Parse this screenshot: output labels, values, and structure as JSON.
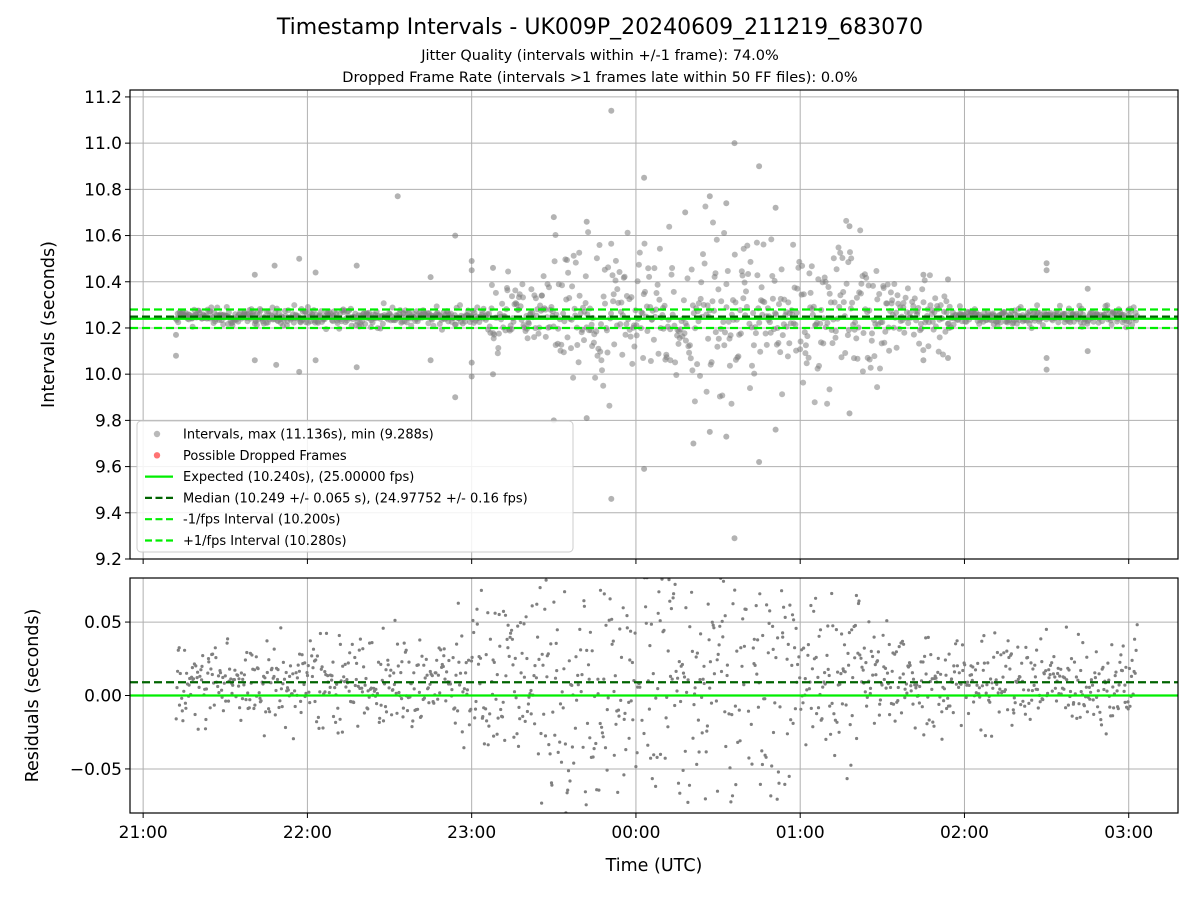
{
  "title": "Timestamp Intervals - UK009P_20240609_211219_683070",
  "subtitle_1": "Jitter Quality (intervals within +/-1 frame): 74.0%",
  "subtitle_2": "Dropped Frame Rate (intervals >1 frames late within 50 FF files): 0.0%",
  "colors": {
    "points": "#808080",
    "dropped": "#ff0000",
    "expected": "#00ee00",
    "median": "#006400",
    "fps_bounds": "#00ee00",
    "grid": "#b0b0b0"
  },
  "chart_data": [
    {
      "type": "scatter",
      "name": "intervals",
      "ylabel": "Intervals (seconds)",
      "xlim_hours": [
        20.92,
        27.3
      ],
      "ylim": [
        9.2,
        11.23
      ],
      "yticks": [
        9.2,
        9.4,
        9.6,
        9.8,
        10.0,
        10.2,
        10.4,
        10.6,
        10.8,
        11.0,
        11.2
      ],
      "ytick_labels": [
        "9.2",
        "9.4",
        "9.6",
        "9.8",
        "10.0",
        "10.2",
        "10.4",
        "10.6",
        "10.8",
        "11.0",
        "11.2"
      ],
      "grid": true,
      "legend_position": "lower-left",
      "legend": [
        {
          "label": "Intervals, max (11.136s), min (9.288s)",
          "kind": "dot",
          "color": "#808080"
        },
        {
          "label": "Possible Dropped Frames",
          "kind": "dot",
          "color": "#ff0000"
        },
        {
          "label": "Expected (10.240s), (25.00000 fps)",
          "kind": "solid",
          "color": "#00ee00"
        },
        {
          "label": "Median (10.249 +/- 0.065 s), (24.97752 +/- 0.16 fps)",
          "kind": "dash",
          "color": "#006400"
        },
        {
          "label": "-1/fps Interval (10.200s)",
          "kind": "dash",
          "color": "#00ee00"
        },
        {
          "label": "+1/fps Interval (10.280s)",
          "kind": "dash",
          "color": "#00ee00"
        }
      ],
      "reference_lines": [
        {
          "label": "expected",
          "y": 10.24,
          "style": "solid",
          "color": "#00ee00"
        },
        {
          "label": "median",
          "y": 10.249,
          "style": "dash",
          "color": "#006400"
        },
        {
          "label": "minus_1_fps",
          "y": 10.2,
          "style": "dash",
          "color": "#00ee00"
        },
        {
          "label": "plus_1_fps",
          "y": 10.28,
          "style": "dash",
          "color": "#00ee00"
        }
      ],
      "outliers": [
        {
          "t": 21.2,
          "v": 10.08
        },
        {
          "t": 21.2,
          "v": 10.17
        },
        {
          "t": 21.68,
          "v": 10.43
        },
        {
          "t": 21.8,
          "v": 10.47
        },
        {
          "t": 21.68,
          "v": 10.06
        },
        {
          "t": 21.81,
          "v": 10.04
        },
        {
          "t": 21.95,
          "v": 10.5
        },
        {
          "t": 21.95,
          "v": 10.01
        },
        {
          "t": 22.05,
          "v": 10.44
        },
        {
          "t": 22.05,
          "v": 10.06
        },
        {
          "t": 22.3,
          "v": 10.47
        },
        {
          "t": 22.3,
          "v": 10.03
        },
        {
          "t": 22.55,
          "v": 10.77
        },
        {
          "t": 22.75,
          "v": 10.42
        },
        {
          "t": 22.75,
          "v": 10.06
        },
        {
          "t": 22.9,
          "v": 10.6
        },
        {
          "t": 22.9,
          "v": 9.9
        },
        {
          "t": 23.0,
          "v": 10.45
        },
        {
          "t": 23.0,
          "v": 10.49
        },
        {
          "t": 23.0,
          "v": 10.05
        },
        {
          "t": 23.0,
          "v": 9.99
        },
        {
          "t": 23.13,
          "v": 10.46
        },
        {
          "t": 23.13,
          "v": 10.0
        },
        {
          "t": 23.85,
          "v": 11.14
        },
        {
          "t": 23.85,
          "v": 9.46
        },
        {
          "t": 24.05,
          "v": 10.85
        },
        {
          "t": 24.05,
          "v": 9.59
        },
        {
          "t": 24.6,
          "v": 11.0
        },
        {
          "t": 24.6,
          "v": 9.29
        },
        {
          "t": 24.75,
          "v": 10.9
        },
        {
          "t": 24.75,
          "v": 9.62
        },
        {
          "t": 24.85,
          "v": 10.72
        },
        {
          "t": 24.85,
          "v": 9.76
        },
        {
          "t": 25.3,
          "v": 10.64
        },
        {
          "t": 25.3,
          "v": 9.83
        },
        {
          "t": 24.3,
          "v": 10.7
        },
        {
          "t": 24.35,
          "v": 9.7
        },
        {
          "t": 23.5,
          "v": 10.68
        },
        {
          "t": 23.5,
          "v": 9.8
        },
        {
          "t": 23.7,
          "v": 10.66
        },
        {
          "t": 23.7,
          "v": 9.81
        },
        {
          "t": 24.45,
          "v": 10.77
        },
        {
          "t": 24.45,
          "v": 9.75
        },
        {
          "t": 24.55,
          "v": 10.74
        },
        {
          "t": 24.55,
          "v": 9.73
        },
        {
          "t": 26.5,
          "v": 10.48
        },
        {
          "t": 26.5,
          "v": 10.45
        },
        {
          "t": 26.5,
          "v": 10.07
        },
        {
          "t": 26.5,
          "v": 10.02
        },
        {
          "t": 26.75,
          "v": 10.37
        },
        {
          "t": 26.75,
          "v": 10.1
        },
        {
          "t": 25.75,
          "v": 10.43
        },
        {
          "t": 25.75,
          "v": 10.06
        },
        {
          "t": 25.9,
          "v": 10.41
        },
        {
          "t": 25.9,
          "v": 10.07
        }
      ],
      "series_note_hidden": ""
    },
    {
      "type": "scatter",
      "name": "residuals",
      "xlabel": "Time (UTC)",
      "ylabel": "Residuals (seconds)",
      "xlim_hours": [
        20.92,
        27.3
      ],
      "ylim": [
        -0.08,
        0.08
      ],
      "yticks": [
        -0.05,
        0.0,
        0.05
      ],
      "ytick_labels": [
        "−0.05",
        "0.00",
        "0.05"
      ],
      "xticks_hours": [
        21,
        22,
        23,
        24,
        25,
        26,
        27
      ],
      "xtick_labels": [
        "21:00",
        "22:00",
        "23:00",
        "00:00",
        "01:00",
        "02:00",
        "03:00"
      ],
      "grid": true,
      "reference_lines": [
        {
          "label": "expected",
          "y": 0.0,
          "style": "solid",
          "color": "#00ee00"
        },
        {
          "label": "median",
          "y": 0.009,
          "style": "dash",
          "color": "#006400"
        }
      ],
      "data_range_hours": [
        21.2,
        27.05
      ]
    }
  ]
}
